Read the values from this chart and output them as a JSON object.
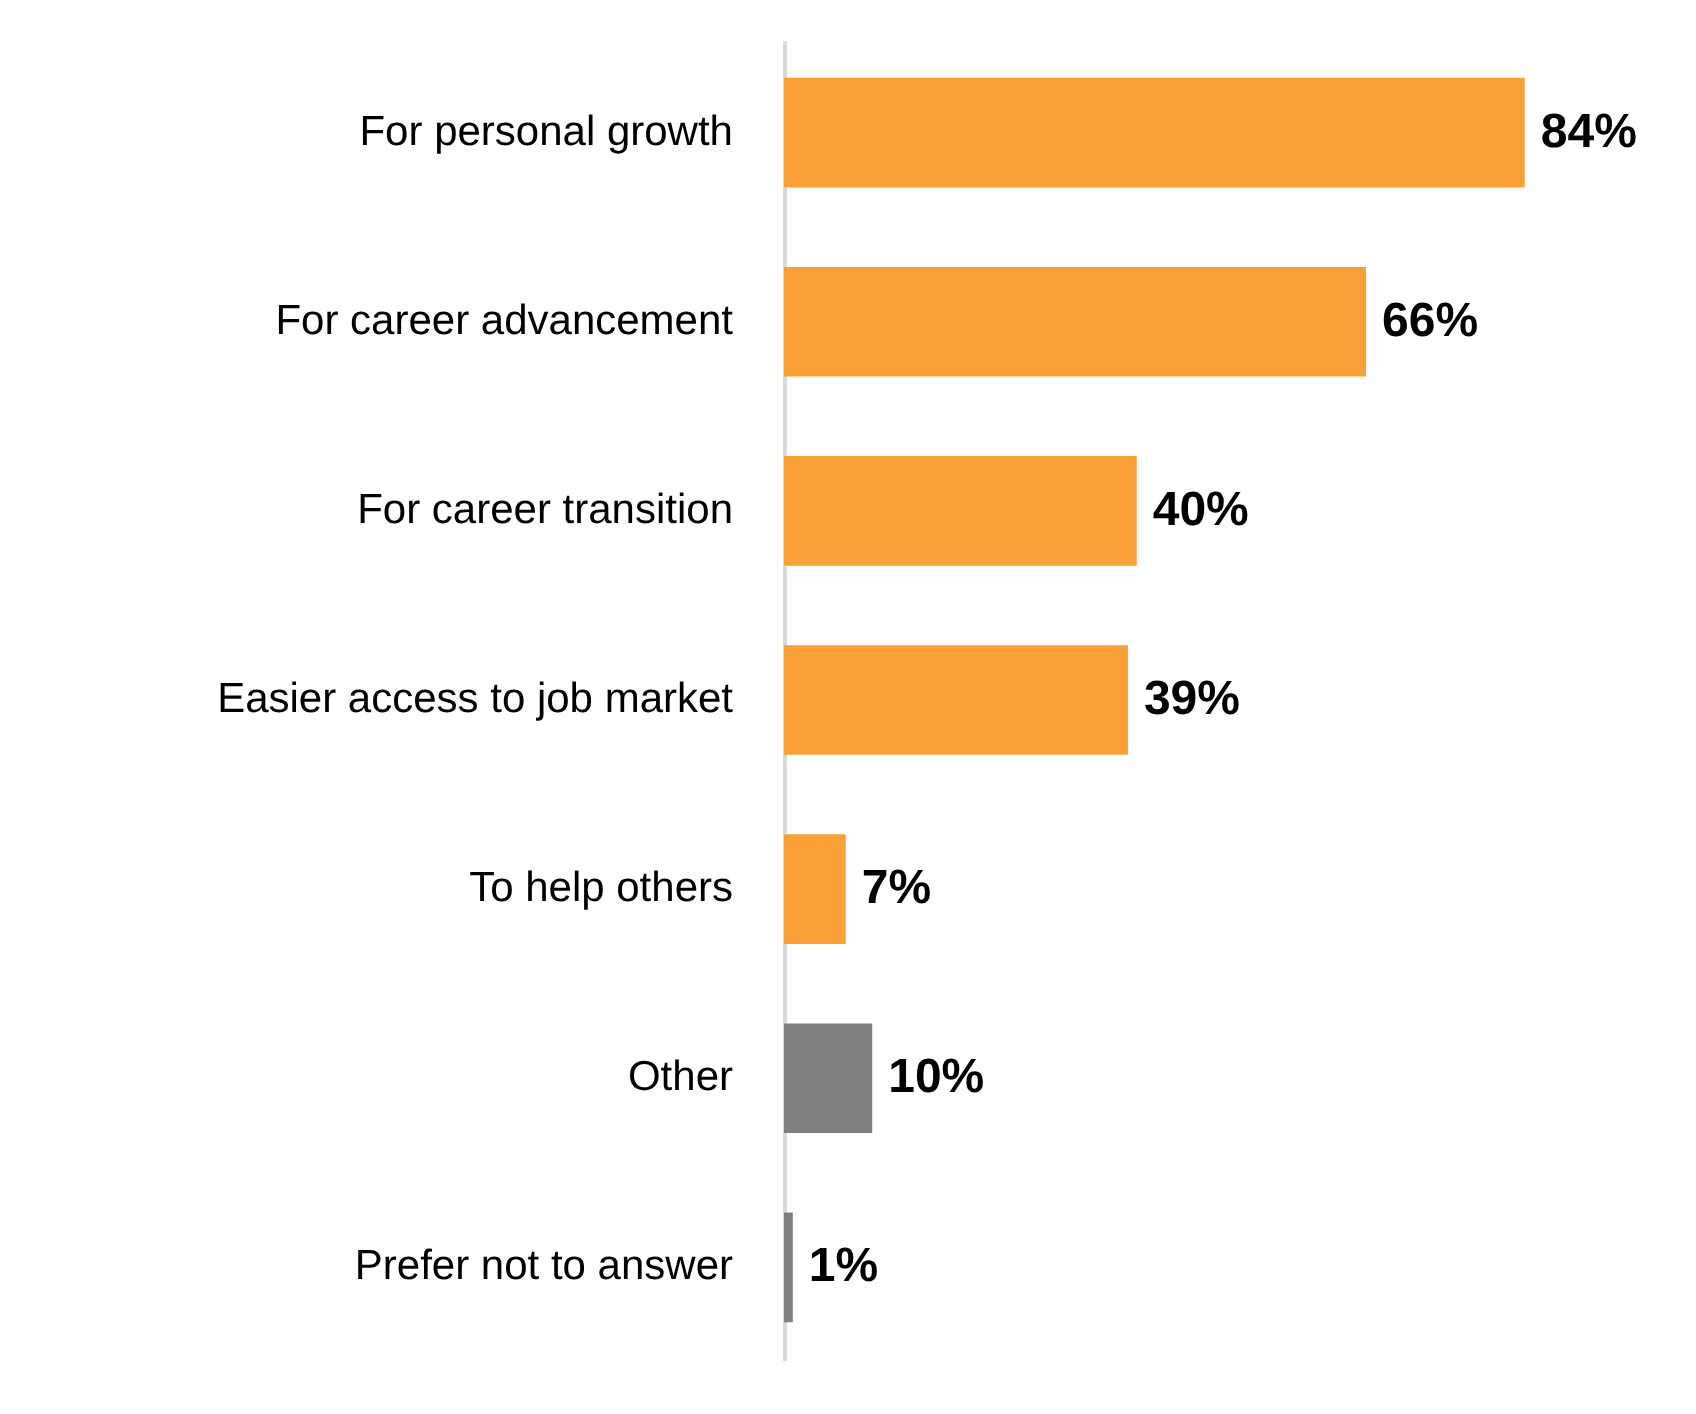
{
  "chart_data": {
    "type": "bar",
    "orientation": "horizontal",
    "categories": [
      "For personal growth",
      "For career advancement",
      "For career transition",
      "Easier access to job market",
      "To help others",
      "Other",
      "Prefer not to answer"
    ],
    "values": [
      84,
      66,
      40,
      39,
      7,
      10,
      1
    ],
    "colors": [
      "#f9a036",
      "#f9a036",
      "#f9a036",
      "#f9a036",
      "#f9a036",
      "#7f7f7f",
      "#7f7f7f"
    ],
    "value_labels": [
      "84%",
      "66%",
      "40%",
      "39%",
      "7%",
      "10%",
      "1%"
    ]
  }
}
